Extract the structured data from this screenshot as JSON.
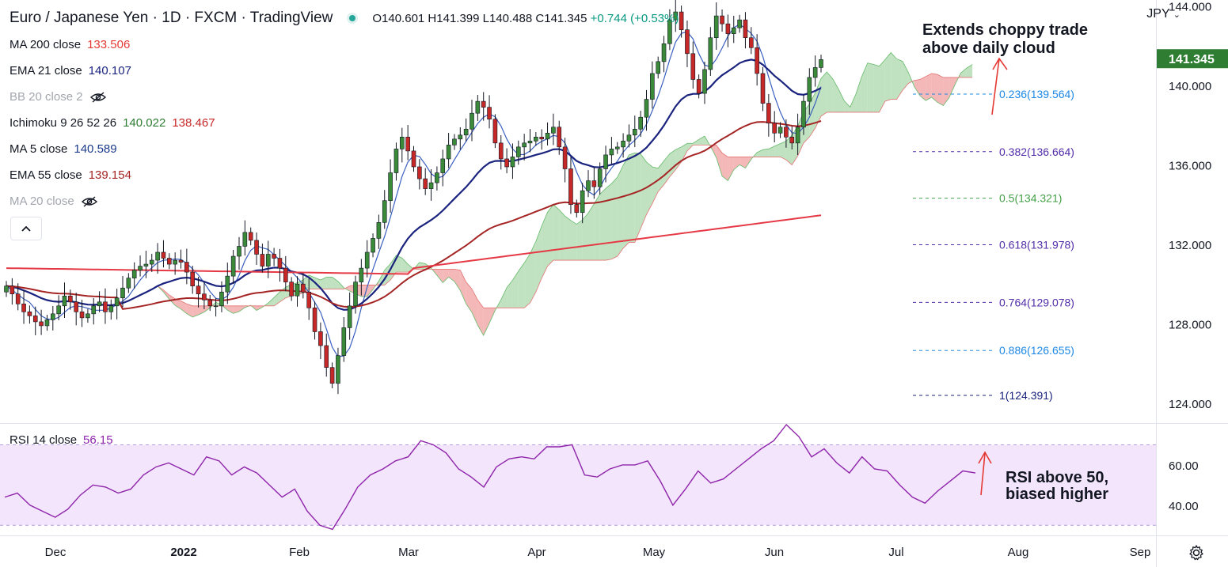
{
  "header": {
    "title": "Euro / Japanese Yen · 1D · FXCM · TradingView",
    "ohlc": {
      "o": "O140.601",
      "h": "H141.399",
      "l": "L140.488",
      "c": "C141.345",
      "chg": "+0.744 (+0.53%)"
    }
  },
  "indicators": [
    {
      "name": "MA 200 close",
      "values": [
        "133.506"
      ],
      "colors": [
        "#e53935"
      ],
      "hidden": false
    },
    {
      "name": "EMA 21 close",
      "values": [
        "140.107"
      ],
      "colors": [
        "#1a237e"
      ],
      "hidden": false
    },
    {
      "name": "BB 20 close 2",
      "values": [],
      "colors": [],
      "hidden": true
    },
    {
      "name": "Ichimoku 9 26 52 26",
      "values": [
        "140.022",
        "138.467"
      ],
      "colors": [
        "#2e7d32",
        "#c62828"
      ],
      "hidden": false
    },
    {
      "name": "MA 5 close",
      "values": [
        "140.589"
      ],
      "colors": [
        "#1a3a8a"
      ],
      "hidden": false
    },
    {
      "name": "EMA 55 close",
      "values": [
        "139.154"
      ],
      "colors": [
        "#a52525"
      ],
      "hidden": false
    },
    {
      "name": "MA 20 close",
      "values": [],
      "colors": [],
      "hidden": true
    }
  ],
  "rsi": {
    "name": "RSI 14 close",
    "value": "56.15",
    "color": "#8e24aa"
  },
  "currency": "JPY",
  "price_badge": "141.345",
  "annotations": {
    "top": [
      "Extends choppy trade",
      "above daily cloud"
    ],
    "rsi": [
      "RSI above 50,",
      "biased higher"
    ]
  },
  "fib_levels": [
    {
      "label": "0.236(139.564)",
      "price": 139.564,
      "color": "#1e88e5"
    },
    {
      "label": "0.382(136.664)",
      "price": 136.664,
      "color": "#512da8"
    },
    {
      "label": "0.5(134.321)",
      "price": 134.321,
      "color": "#43a047"
    },
    {
      "label": "0.618(131.978)",
      "price": 131.978,
      "color": "#512da8"
    },
    {
      "label": "0.764(129.078)",
      "price": 129.078,
      "color": "#512da8"
    },
    {
      "label": "0.886(126.655)",
      "price": 126.655,
      "color": "#1e88e5"
    },
    {
      "label": "1(124.391)",
      "price": 124.391,
      "color": "#1a237e"
    }
  ],
  "colors": {
    "up": "#26a69a",
    "down": "#ef5350",
    "candle_up": "#3a8a3a",
    "candle_down": "#c62828",
    "rsi_band": "#f3e5fc",
    "rsi_line": "#8e24aa",
    "cloud_green": "#a5d6a7",
    "cloud_red": "#ef9a9a"
  },
  "chart_data": {
    "type": "candlestick",
    "symbol": "EUR/JPY",
    "timeframe": "1D",
    "price_axis": {
      "ticks": [
        "124.000",
        "128.000",
        "132.000",
        "136.000",
        "140.000",
        "144.000"
      ],
      "range": [
        123.0,
        144.3
      ]
    },
    "rsi_axis": {
      "ticks": [
        "40.00",
        "60.00"
      ],
      "range": [
        25,
        80
      ],
      "bands": [
        30,
        70
      ]
    },
    "x_ticks": [
      "Dec",
      "2022",
      "Feb",
      "Mar",
      "Apr",
      "May",
      "Jun",
      "Jul",
      "Aug",
      "Sep"
    ],
    "series": [
      {
        "name": "Price (close)",
        "values": [
          129.9,
          129.5,
          129.0,
          128.6,
          128.4,
          128.1,
          127.9,
          128.2,
          128.5,
          128.9,
          129.4,
          129.1,
          128.6,
          128.3,
          128.5,
          128.9,
          129.1,
          128.6,
          128.9,
          129.3,
          129.8,
          130.3,
          130.7,
          130.9,
          131.0,
          131.2,
          131.6,
          131.3,
          131.0,
          131.2,
          131.1,
          130.6,
          129.9,
          129.5,
          129.2,
          128.9,
          128.9,
          129.6,
          130.4,
          131.4,
          131.9,
          132.6,
          132.2,
          131.5,
          130.9,
          131.5,
          131.3,
          130.8,
          130.1,
          129.4,
          130.0,
          129.6,
          128.8,
          127.6,
          126.9,
          125.8,
          125.0,
          126.4,
          127.8,
          128.9,
          130.1,
          130.8,
          131.6,
          132.3,
          133.1,
          134.2,
          135.6,
          136.8,
          137.4,
          136.7,
          135.9,
          135.3,
          134.8,
          135.1,
          135.6,
          136.3,
          137.0,
          137.3,
          137.5,
          137.8,
          138.6,
          139.2,
          138.9,
          138.3,
          137.1,
          136.3,
          135.9,
          136.4,
          136.9,
          137.1,
          137.2,
          137.4,
          137.3,
          137.6,
          137.9,
          136.9,
          135.8,
          134.0,
          133.6,
          134.7,
          135.2,
          134.9,
          135.8,
          136.5,
          136.8,
          136.9,
          137.2,
          137.5,
          137.8,
          138.4,
          139.3,
          140.6,
          141.2,
          142.1,
          143.3,
          143.7,
          142.8,
          141.6,
          140.3,
          139.6,
          140.8,
          142.4,
          143.5,
          143.1,
          142.6,
          142.9,
          143.3,
          142.4,
          141.9,
          140.6,
          139.1,
          138.1,
          137.6,
          137.9,
          137.4,
          137.1,
          137.9,
          139.2,
          140.4,
          140.9,
          141.3
        ]
      },
      {
        "name": "MA 200 close",
        "values": [
          130.8,
          131.0,
          131.1,
          131.5,
          131.9,
          133.1,
          133.5
        ]
      },
      {
        "name": "EMA 55 close",
        "values": [
          130.7,
          130.3,
          130.6,
          130.1,
          130.8,
          132.6,
          134.6,
          136.7,
          137.9,
          139.2
        ]
      },
      {
        "name": "RSI 14 close",
        "values": [
          44,
          46,
          40,
          37,
          34,
          38,
          45,
          50,
          49,
          46,
          48,
          55,
          59,
          61,
          58,
          55,
          64,
          62,
          55,
          59,
          56,
          50,
          44,
          48,
          37,
          30,
          28,
          38,
          49,
          55,
          58,
          62,
          64,
          72,
          70,
          66,
          58,
          54,
          49,
          59,
          63,
          64,
          63,
          69,
          69,
          70,
          55,
          54,
          58,
          60,
          60,
          62,
          52,
          40,
          48,
          57,
          51,
          53,
          58,
          63,
          68,
          72,
          80,
          74,
          64,
          68,
          61,
          56,
          64,
          58,
          57,
          50,
          44,
          41,
          47,
          52,
          57,
          56
        ]
      }
    ]
  }
}
